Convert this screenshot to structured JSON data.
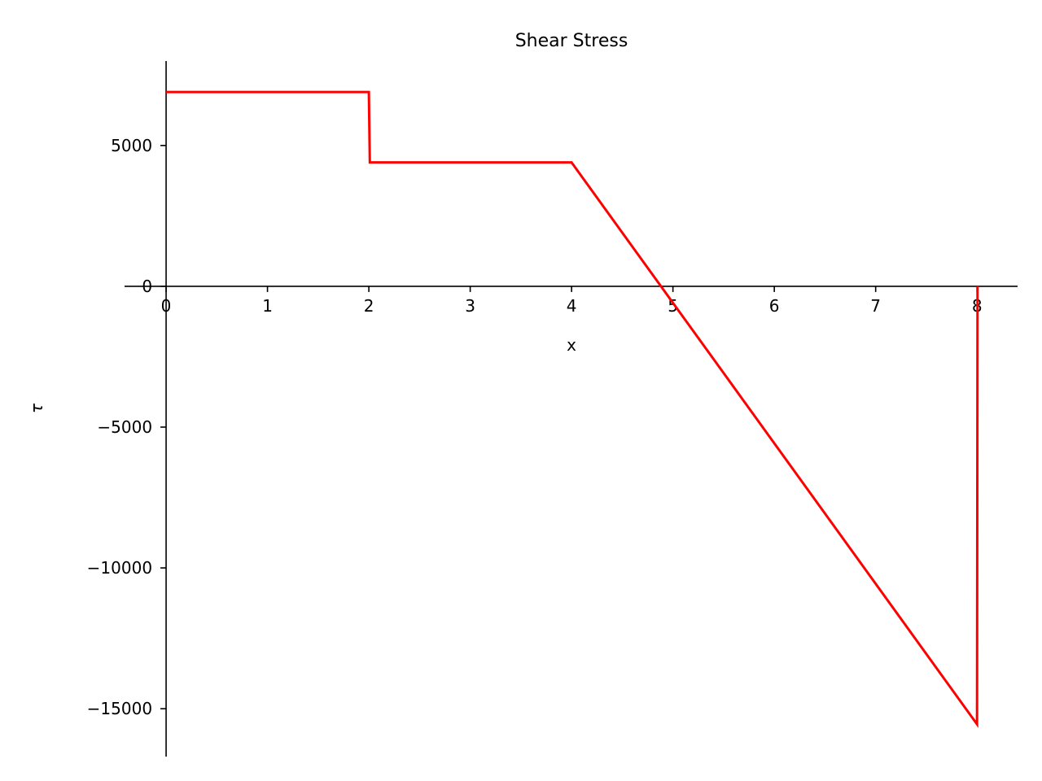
{
  "chart_data": {
    "type": "line",
    "title": "Shear Stress",
    "xlabel": "x",
    "ylabel": "τ",
    "xlim": [
      -0.41,
      8.4
    ],
    "ylim": [
      -16700,
      8000
    ],
    "grid": false,
    "spines": "centered at origin",
    "xticks": [
      0,
      1,
      2,
      3,
      4,
      5,
      6,
      7,
      8
    ],
    "xtick_labels": [
      "0",
      "1",
      "2",
      "3",
      "4",
      "5",
      "6",
      "7",
      "8"
    ],
    "yticks": [
      5000,
      0,
      -5000,
      -10000,
      -15000
    ],
    "ytick_labels": [
      "5000",
      "0",
      "−5000",
      "−10000",
      "−15000"
    ],
    "series": [
      {
        "name": "τ",
        "color": "#ff0000",
        "x": [
          0,
          2,
          2.01,
          4,
          8,
          8.005
        ],
        "y": [
          6900,
          6900,
          4400,
          4400,
          -15550,
          0
        ]
      }
    ]
  }
}
